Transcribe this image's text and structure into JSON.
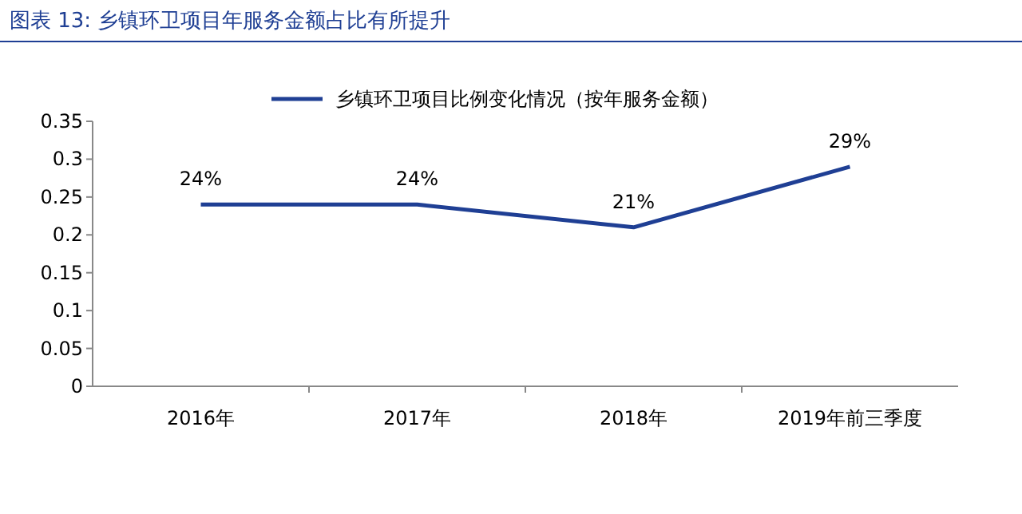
{
  "chart_data": {
    "type": "line",
    "title": "图表 13: 乡镇环卫项目年服务金额占比有所提升",
    "categories": [
      "2016年",
      "2017年",
      "2018年",
      "2019年前三季度"
    ],
    "series": [
      {
        "name": "乡镇环卫项目比例变化情况（按年服务金额）",
        "color": "#1f3f94",
        "values": [
          0.24,
          0.24,
          0.21,
          0.29
        ],
        "value_labels": [
          "24%",
          "24%",
          "21%",
          "29%"
        ]
      }
    ],
    "ylim": [
      0,
      0.35
    ],
    "yticks": [
      0,
      0.05,
      0.1,
      0.15,
      0.2,
      0.25,
      0.3,
      0.35
    ],
    "grid": false,
    "legend": "top",
    "marker": "none",
    "line_style": "solid"
  }
}
